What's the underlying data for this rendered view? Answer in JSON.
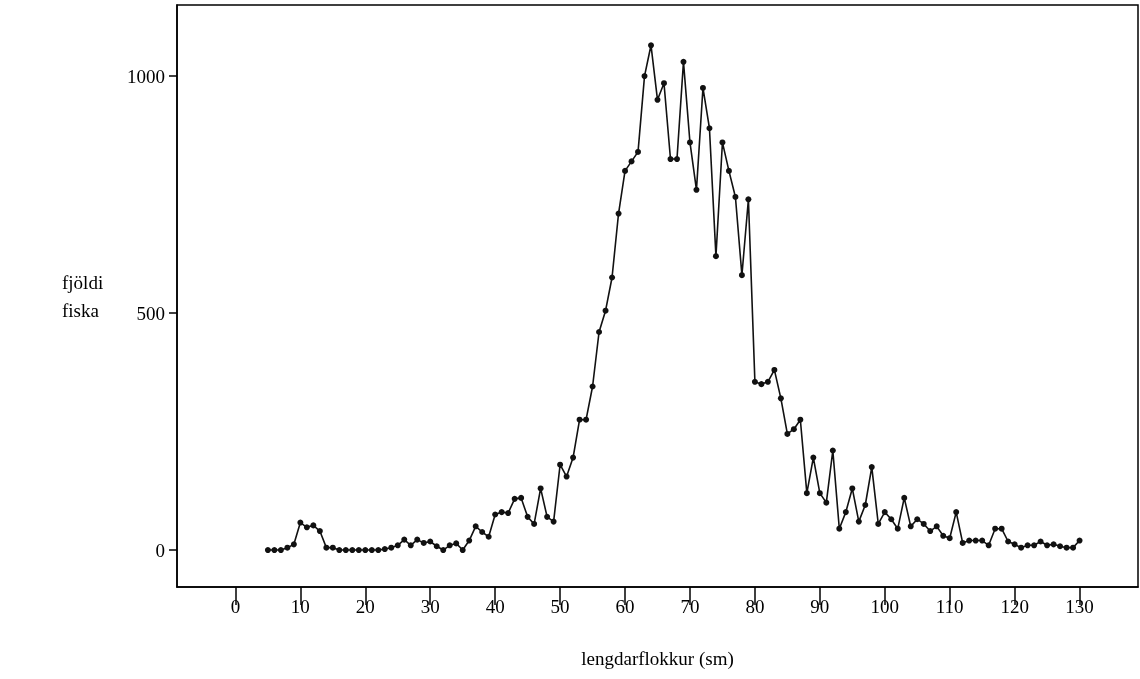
{
  "chart_data": {
    "type": "line",
    "xlabel": "lengdarflokkur (sm)",
    "ylabel": "fjöldi fiska",
    "x": [
      5,
      6,
      7,
      8,
      9,
      10,
      11,
      12,
      13,
      14,
      15,
      16,
      17,
      18,
      19,
      20,
      21,
      22,
      23,
      24,
      25,
      26,
      27,
      28,
      29,
      30,
      31,
      32,
      33,
      34,
      35,
      36,
      37,
      38,
      39,
      40,
      41,
      42,
      43,
      44,
      45,
      46,
      47,
      48,
      49,
      50,
      51,
      52,
      53,
      54,
      55,
      56,
      57,
      58,
      59,
      60,
      61,
      62,
      63,
      64,
      65,
      66,
      67,
      68,
      69,
      70,
      71,
      72,
      73,
      74,
      75,
      76,
      77,
      78,
      79,
      80,
      81,
      82,
      83,
      84,
      85,
      86,
      87,
      88,
      89,
      90,
      91,
      92,
      93,
      94,
      95,
      96,
      97,
      98,
      99,
      100,
      101,
      102,
      103,
      104,
      105,
      106,
      107,
      108,
      109,
      110,
      111,
      112,
      113,
      114,
      115,
      116,
      117,
      118,
      119,
      120,
      121,
      122,
      123,
      124,
      125,
      126,
      127,
      128,
      129,
      130
    ],
    "series": [
      {
        "color": "#111111",
        "values": [
          0,
          0,
          0,
          5,
          12,
          58,
          48,
          52,
          40,
          5,
          5,
          0,
          0,
          0,
          0,
          0,
          0,
          0,
          2,
          5,
          10,
          22,
          10,
          22,
          15,
          18,
          8,
          0,
          10,
          14,
          0,
          20,
          50,
          38,
          28,
          75,
          80,
          78,
          108,
          110,
          70,
          55,
          130,
          70,
          60,
          180,
          155,
          195,
          275,
          275,
          345,
          460,
          505,
          575,
          710,
          800,
          820,
          840,
          1000,
          1065,
          950,
          985,
          825,
          825,
          1030,
          860,
          760,
          975,
          890,
          620,
          860,
          800,
          745,
          580,
          740,
          355,
          350,
          355,
          380,
          320,
          245,
          255,
          275,
          120,
          195,
          120,
          100,
          210,
          45,
          80,
          130,
          60,
          95,
          175,
          55,
          80,
          65,
          45,
          110,
          50,
          65,
          55,
          40,
          50,
          30,
          25,
          80,
          15,
          20,
          20,
          20,
          10,
          45,
          45,
          18,
          12,
          5,
          10,
          10,
          18,
          10,
          12,
          8,
          5,
          5,
          20
        ]
      }
    ],
    "xlim": [
      -9,
      139
    ],
    "xticks": [
      0,
      10,
      20,
      30,
      40,
      50,
      60,
      70,
      80,
      90,
      100,
      110,
      120,
      130
    ],
    "ylim": [
      -78,
      1150
    ],
    "yticks": [
      0,
      500,
      1000
    ],
    "grid": false,
    "marker": "circle",
    "line_style": "solid"
  }
}
